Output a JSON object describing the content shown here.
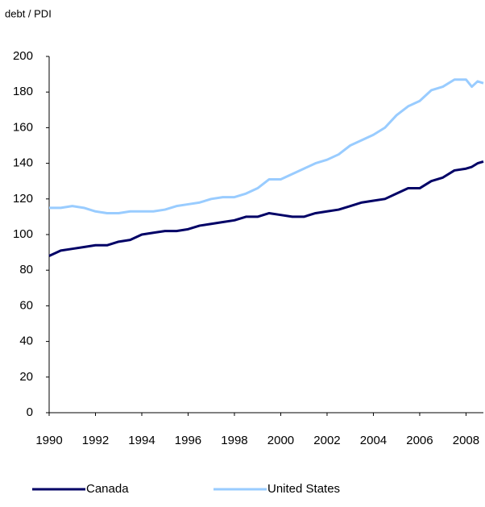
{
  "chart_data": {
    "type": "line",
    "y_axis_label": "debt / PDI",
    "x": [
      1990,
      1990.5,
      1991,
      1991.5,
      1992,
      1992.5,
      1993,
      1993.5,
      1994,
      1994.5,
      1995,
      1995.5,
      1996,
      1996.5,
      1997,
      1997.5,
      1998,
      1998.5,
      1999,
      1999.5,
      2000,
      2000.5,
      2001,
      2001.5,
      2002,
      2002.5,
      2003,
      2003.5,
      2004,
      2004.5,
      2005,
      2005.5,
      2006,
      2006.5,
      2007,
      2007.5,
      2008,
      2008.25,
      2008.5,
      2008.75
    ],
    "series": [
      {
        "name": "Canada",
        "color": "#000066",
        "values": [
          88,
          91,
          92,
          93,
          94,
          94,
          96,
          97,
          100,
          101,
          102,
          102,
          103,
          105,
          106,
          107,
          108,
          110,
          110,
          112,
          111,
          110,
          110,
          112,
          113,
          114,
          116,
          118,
          119,
          120,
          123,
          126,
          126,
          130,
          132,
          136,
          137,
          138,
          140,
          141
        ]
      },
      {
        "name": "United States",
        "color": "#99ccff",
        "values": [
          115,
          115,
          116,
          115,
          113,
          112,
          112,
          113,
          113,
          113,
          114,
          116,
          117,
          118,
          120,
          121,
          121,
          123,
          126,
          131,
          131,
          134,
          137,
          140,
          142,
          145,
          150,
          153,
          156,
          160,
          167,
          172,
          175,
          181,
          183,
          187,
          187,
          183,
          186,
          185
        ]
      }
    ],
    "xlim": [
      1990,
      2008.75
    ],
    "xticks": [
      1990,
      1992,
      1994,
      1996,
      1998,
      2000,
      2002,
      2004,
      2006,
      2008
    ],
    "ylim": [
      0,
      200
    ],
    "yticks": [
      0,
      20,
      40,
      60,
      80,
      100,
      120,
      140,
      160,
      180,
      200
    ],
    "legend": "bottom"
  }
}
